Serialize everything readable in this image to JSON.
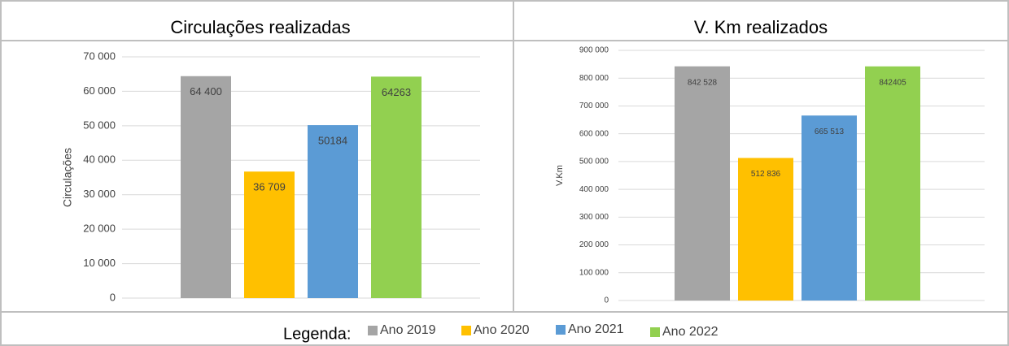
{
  "chart_data": [
    {
      "type": "bar",
      "title": "Circulações realizadas",
      "ylabel": "Circulações",
      "values": [
        64400,
        36709,
        50184,
        64263
      ],
      "value_labels": [
        "64 400",
        "36 709",
        "50184",
        "64263"
      ],
      "colors": [
        "#a5a5a5",
        "#ffc000",
        "#5b9bd5",
        "#92d050"
      ],
      "ylim": [
        0,
        70000
      ],
      "yticks": [
        0,
        {
          "value": 10000,
          "label": "10 000"
        },
        {
          "value": 20000,
          "label": "20 000"
        },
        {
          "value": 30000,
          "label": "30 000"
        },
        {
          "value": 40000,
          "label": "40 000"
        },
        {
          "value": 50000,
          "label": "50 000"
        },
        {
          "value": 60000,
          "label": "60 000"
        },
        {
          "value": 70000,
          "label": "70 000"
        }
      ],
      "grid": true
    },
    {
      "type": "bar",
      "title": "V. Km realizados",
      "ylabel": "V.Km",
      "values": [
        842528,
        512836,
        665513,
        842405
      ],
      "value_labels": [
        "842 528",
        "512 836",
        "665 513",
        "842405"
      ],
      "colors": [
        "#a5a5a5",
        "#ffc000",
        "#5b9bd5",
        "#92d050"
      ],
      "ylim": [
        0,
        900000
      ],
      "yticks": [
        0,
        {
          "value": 100000,
          "label": "100 000"
        },
        {
          "value": 200000,
          "label": "200 000"
        },
        {
          "value": 300000,
          "label": "300 000"
        },
        {
          "value": 400000,
          "label": "400 000"
        },
        {
          "value": 500000,
          "label": "500 000"
        },
        {
          "value": 600000,
          "label": "600 000"
        },
        {
          "value": 700000,
          "label": "700 000"
        },
        {
          "value": 800000,
          "label": "800 000"
        },
        {
          "value": 900000,
          "label": "900 000"
        }
      ],
      "grid": true
    }
  ],
  "legend": {
    "title": "Legenda:",
    "items": [
      {
        "name": "Ano 2019",
        "color": "#a5a5a5"
      },
      {
        "name": "Ano 2020",
        "color": "#ffc000"
      },
      {
        "name": "Ano 2021",
        "color": "#5b9bd5"
      },
      {
        "name": "Ano 2022",
        "color": "#92d050"
      }
    ]
  }
}
